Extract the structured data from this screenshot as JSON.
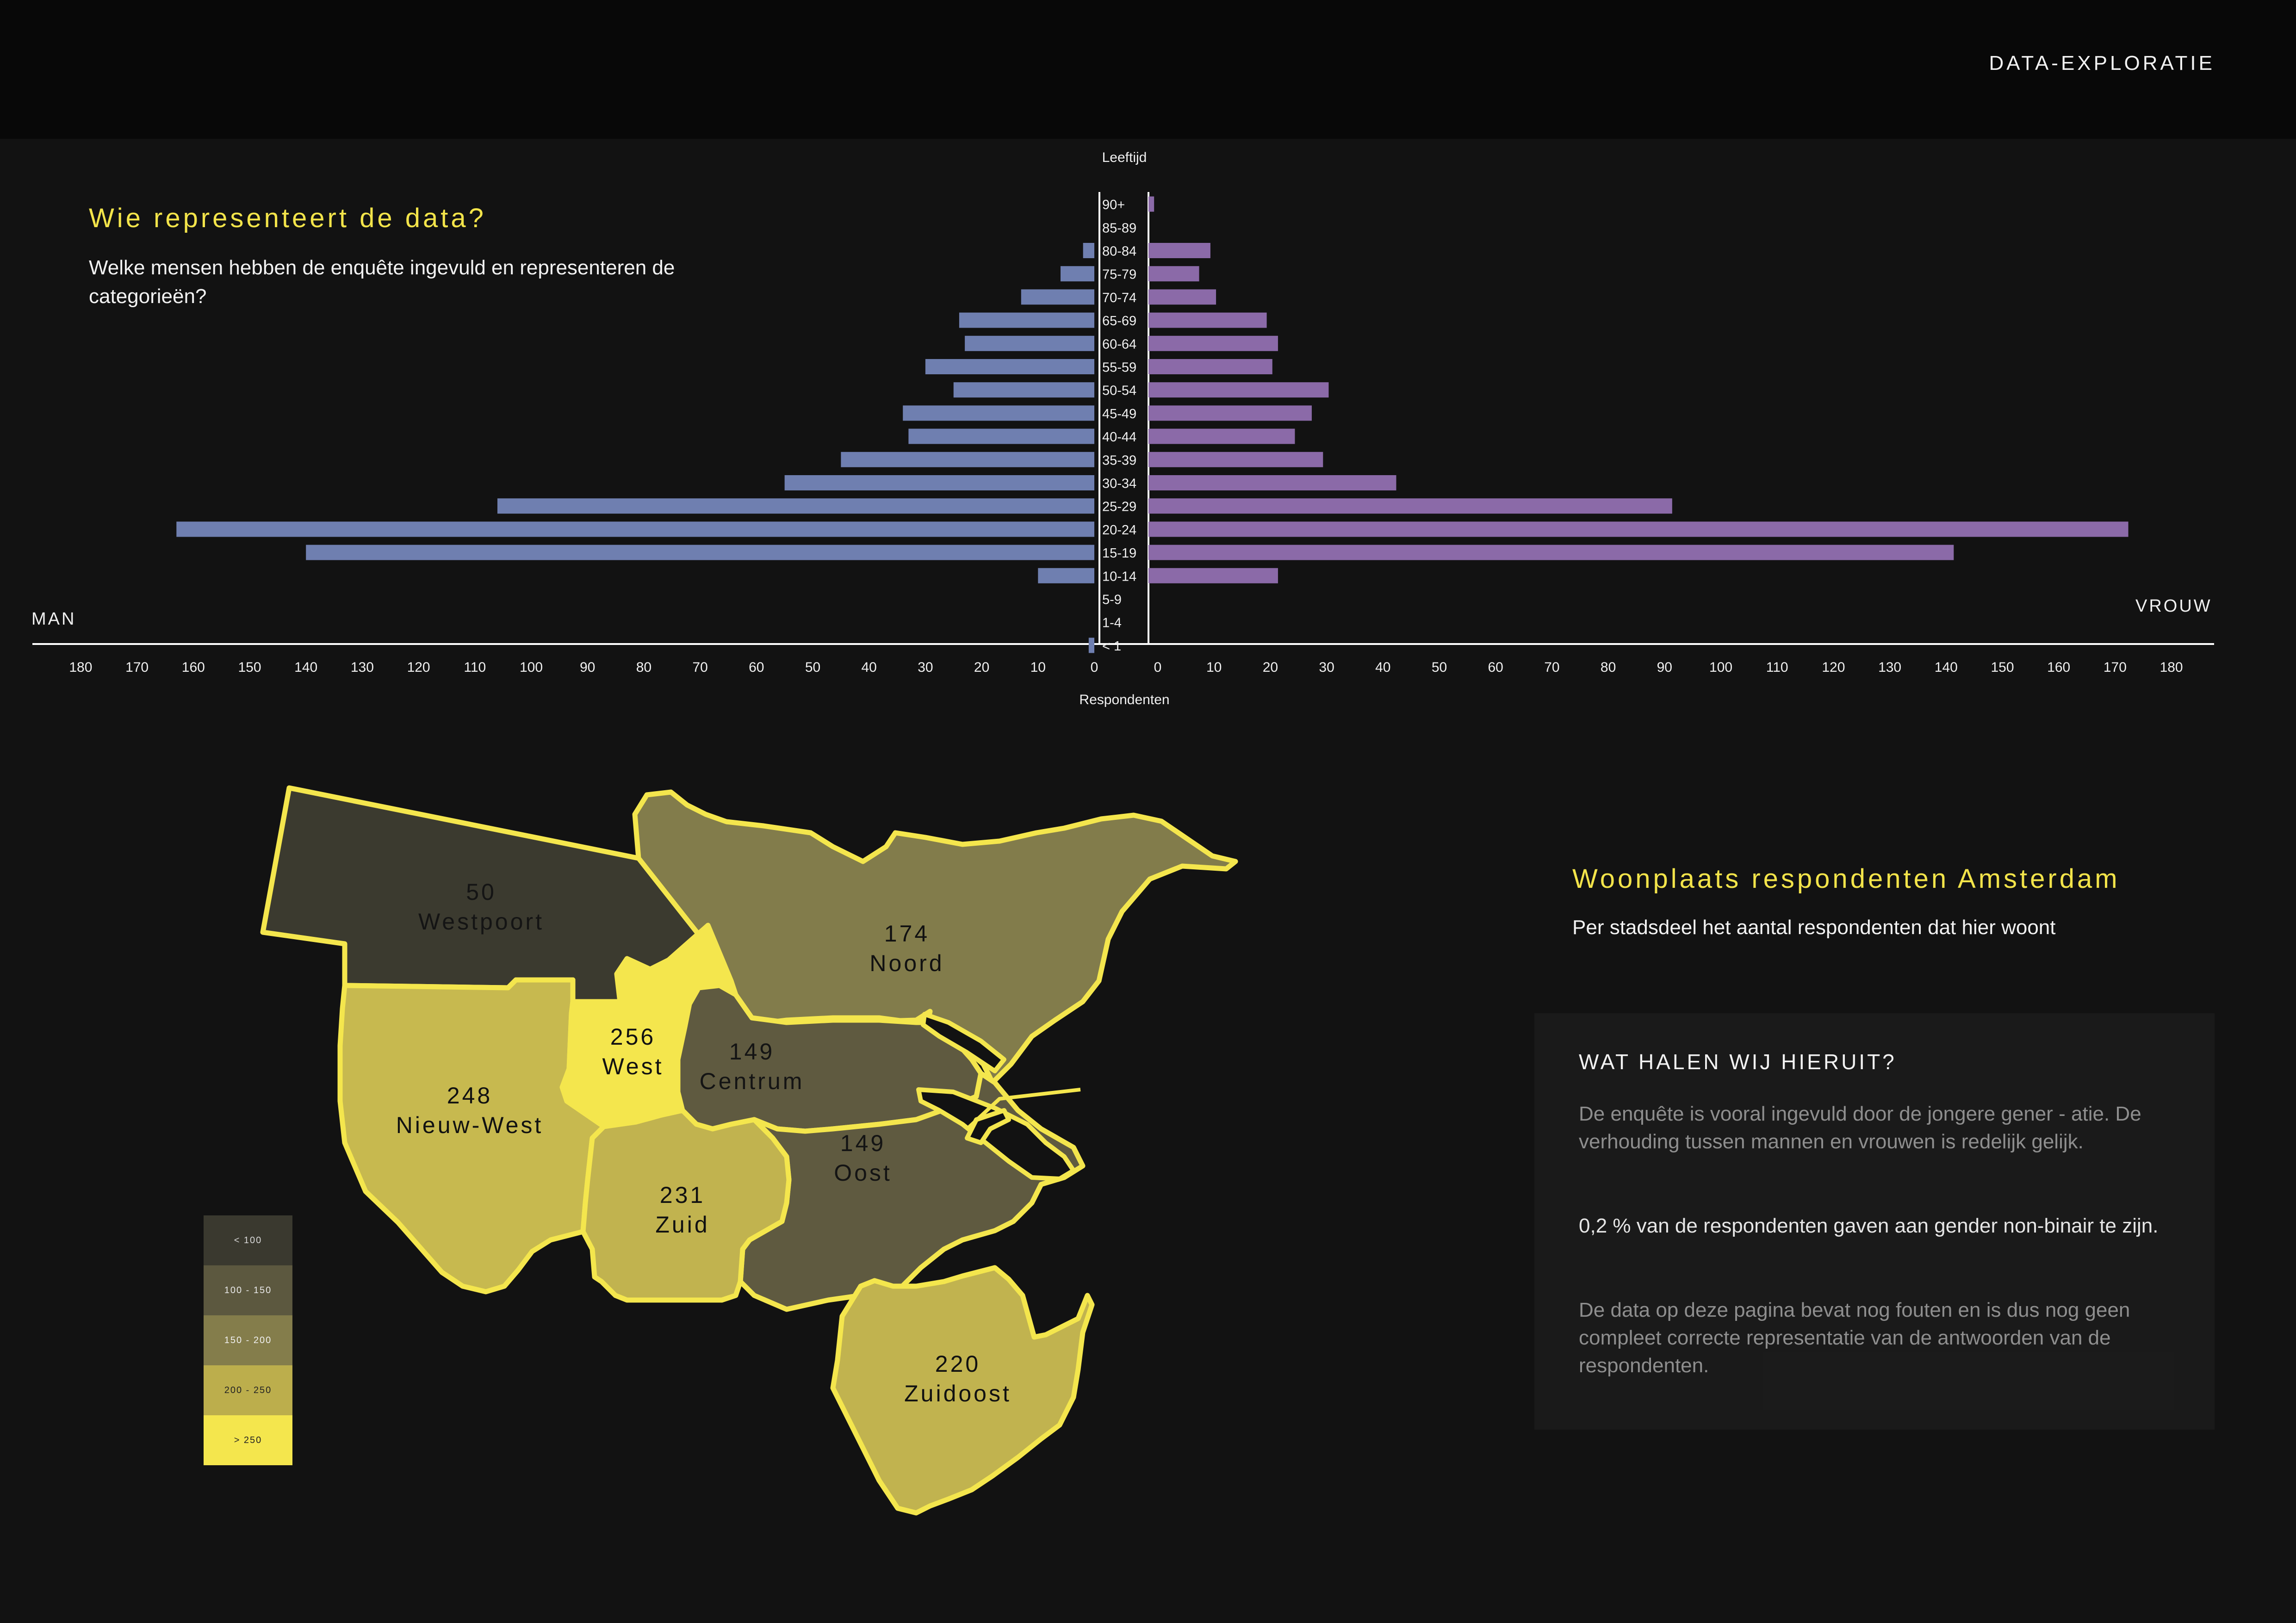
{
  "header": {
    "label": "DATA-EXPLORATIE"
  },
  "pyramid": {
    "title": "Wie representeert de data?",
    "subtitle": "Welke mensen hebben de enquête ingevuld en representeren de categorieën?"
  },
  "chart_data": [
    {
      "type": "bar",
      "orientation": "horizontal",
      "subtype": "population-pyramid",
      "title": "Wie representeert de data?",
      "ylabel": "Leeftijd",
      "xlabel": "Respondenten",
      "left_label": "MAN",
      "right_label": "VROUW",
      "xlim": [
        0,
        180
      ],
      "ticks": [
        180,
        170,
        160,
        150,
        140,
        130,
        120,
        110,
        100,
        90,
        80,
        70,
        60,
        50,
        40,
        30,
        20,
        10,
        0
      ],
      "categories": [
        "90+",
        "85-89",
        "80-84",
        "75-79",
        "70-74",
        "65-69",
        "60-64",
        "55-59",
        "50-54",
        "45-49",
        "40-44",
        "35-39",
        "30-34",
        "25-29",
        "20-24",
        "15-19",
        "10-14",
        "5-9",
        "1-4",
        "< 1"
      ],
      "series": [
        {
          "name": "MAN",
          "color": "#6f7fb0",
          "values": [
            0,
            0,
            2,
            6,
            13,
            24,
            23,
            30,
            25,
            34,
            33,
            45,
            55,
            106,
            163,
            140,
            10,
            0,
            0,
            1
          ]
        },
        {
          "name": "VROUW",
          "color": "#8b6aa8",
          "values": [
            1,
            0,
            11,
            9,
            12,
            21,
            23,
            22,
            32,
            29,
            26,
            31,
            44,
            93,
            174,
            143,
            23,
            0,
            0,
            0
          ]
        }
      ]
    }
  ],
  "map": {
    "title": "Woonplaats respondenten Amsterdam",
    "subtitle": "Per stadsdeel het aantal respondenten dat hier woont",
    "districts": [
      {
        "id": "westpoort",
        "name": "Westpoort",
        "count": "50",
        "fill": "#3b3a2f"
      },
      {
        "id": "noord",
        "name": "Noord",
        "count": "174",
        "fill": "#827c4b"
      },
      {
        "id": "west",
        "name": "West",
        "count": "256",
        "fill": "#f4e64d"
      },
      {
        "id": "centrum",
        "name": "Centrum",
        "count": "149",
        "fill": "#5f5a40"
      },
      {
        "id": "nieuw-west",
        "name": "Nieuw-West",
        "count": "248",
        "fill": "#c7b94f"
      },
      {
        "id": "zuid",
        "name": "Zuid",
        "count": "231",
        "fill": "#c1b34f"
      },
      {
        "id": "oost",
        "name": "Oost",
        "count": "149",
        "fill": "#5f5a40"
      },
      {
        "id": "zuidoost",
        "name": "Zuidoost",
        "count": "220",
        "fill": "#c1b34f"
      }
    ],
    "legend": [
      {
        "label": "< 100",
        "color": "#3a392f",
        "text_color": "#d8d8d8"
      },
      {
        "label": "100 - 150",
        "color": "#5c583f",
        "text_color": "#e8e8e8"
      },
      {
        "label": "150 - 200",
        "color": "#847d4b",
        "text_color": "#f0f0f0"
      },
      {
        "label": "200 - 250",
        "color": "#bcae4c",
        "text_color": "#222222"
      },
      {
        "label": "> 250",
        "color": "#f4e64d",
        "text_color": "#222222"
      }
    ]
  },
  "insights": {
    "heading": "WAT HALEN WIJ HIERUIT?",
    "p1": "De enquête is vooral ingevuld door de jongere gener - atie. De verhouding tussen mannen en vrouwen is redelijk gelijk.",
    "p2": "0,2 % van de respondenten gaven aan gender non-binair te zijn.",
    "p3": "De data op deze pagina bevat nog fouten en is dus nog geen compleet correcte representatie van de antwoorden van de respondenten."
  }
}
